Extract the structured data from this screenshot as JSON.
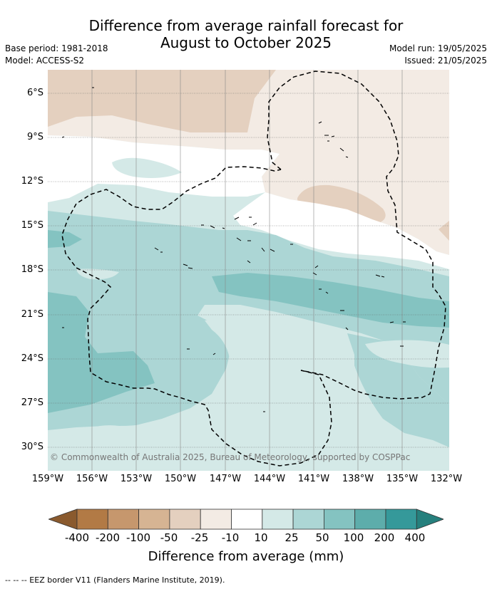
{
  "header": {
    "title_line1": "Difference from average rainfall forecast for",
    "title_line2": "August to October 2025",
    "base_period": "Base period: 1981-2018",
    "model": "Model: ACCESS-S2",
    "model_run": "Model run: 19/05/2025",
    "issued": "Issued: 21/05/2025"
  },
  "map": {
    "lon_labels": [
      "159°W",
      "156°W",
      "153°W",
      "150°W",
      "147°W",
      "144°W",
      "141°W",
      "138°W",
      "135°W",
      "132°W"
    ],
    "lat_labels": [
      "6°S",
      "9°S",
      "12°S",
      "15°S",
      "18°S",
      "21°S",
      "24°S",
      "27°S",
      "30°S"
    ],
    "copyright": "© Commonwealth of Australia 2025, Bureau of Meteorology, supported by COSPPac"
  },
  "colorbar": {
    "labels": [
      "-400",
      "-200",
      "-100",
      "-50",
      "-25",
      "-10",
      "10",
      "25",
      "50",
      "100",
      "200",
      "400"
    ],
    "colors": [
      "#8a5a2e",
      "#b27a45",
      "#c6976d",
      "#d6b493",
      "#e4d0bf",
      "#f3ebe4",
      "#ffffff",
      "#d4e9e7",
      "#acd6d5",
      "#84c3c1",
      "#5dadab",
      "#35999a",
      "#26807d"
    ],
    "title": "Difference from average (mm)"
  },
  "footnote": "--  --  -- EEZ border V11 (Flanders Marine Institute, 2019)."
}
